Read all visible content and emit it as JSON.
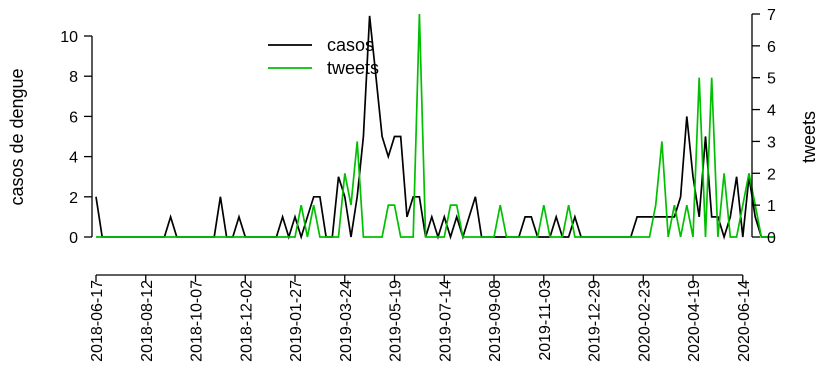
{
  "chart_data": {
    "type": "line",
    "ylabel_left": "casos de dengue",
    "ylabel_right": "tweets",
    "ylim_left": [
      0,
      11
    ],
    "ylim_right": [
      0,
      7
    ],
    "yticks_left": [
      0,
      2,
      4,
      6,
      8,
      10
    ],
    "yticks_right": [
      0,
      1,
      2,
      3,
      4,
      5,
      6,
      7
    ],
    "x_range": [
      "2018-06-17",
      "2020-06-21"
    ],
    "x_tick_labels": [
      "2018-06-17",
      "2018-08-12",
      "2018-10-07",
      "2018-12-02",
      "2019-01-27",
      "2019-03-24",
      "2019-05-19",
      "2019-07-14",
      "2019-09-08",
      "2019-11-03",
      "2019-12-29",
      "2020-02-23",
      "2020-04-19",
      "2020-06-14"
    ],
    "legend": {
      "placement": "top-center",
      "entries": [
        "casos",
        "tweets"
      ]
    },
    "series": [
      {
        "name": "casos",
        "axis": "left",
        "color": "#000000",
        "points": [
          [
            "2018-06-17",
            2
          ],
          [
            "2018-06-24",
            0
          ],
          [
            "2018-09-02",
            0
          ],
          [
            "2018-09-09",
            1
          ],
          [
            "2018-09-16",
            0
          ],
          [
            "2018-10-28",
            0
          ],
          [
            "2018-11-04",
            2
          ],
          [
            "2018-11-11",
            0
          ],
          [
            "2018-11-18",
            0
          ],
          [
            "2018-11-25",
            1
          ],
          [
            "2018-12-02",
            0
          ],
          [
            "2019-01-06",
            0
          ],
          [
            "2019-01-13",
            1
          ],
          [
            "2019-01-20",
            0
          ],
          [
            "2019-01-27",
            1
          ],
          [
            "2019-02-03",
            0
          ],
          [
            "2019-02-10",
            1
          ],
          [
            "2019-02-17",
            2
          ],
          [
            "2019-02-24",
            2
          ],
          [
            "2019-03-03",
            0
          ],
          [
            "2019-03-10",
            0
          ],
          [
            "2019-03-17",
            3
          ],
          [
            "2019-03-24",
            2
          ],
          [
            "2019-03-31",
            0
          ],
          [
            "2019-04-07",
            2
          ],
          [
            "2019-04-14",
            5
          ],
          [
            "2019-04-21",
            11
          ],
          [
            "2019-04-28",
            8
          ],
          [
            "2019-05-05",
            5
          ],
          [
            "2019-05-12",
            4
          ],
          [
            "2019-05-19",
            5
          ],
          [
            "2019-05-26",
            5
          ],
          [
            "2019-06-02",
            1
          ],
          [
            "2019-06-09",
            2
          ],
          [
            "2019-06-16",
            2
          ],
          [
            "2019-06-23",
            0
          ],
          [
            "2019-06-30",
            1
          ],
          [
            "2019-07-07",
            0
          ],
          [
            "2019-07-14",
            1
          ],
          [
            "2019-07-21",
            0
          ],
          [
            "2019-07-28",
            1
          ],
          [
            "2019-08-04",
            0
          ],
          [
            "2019-08-11",
            1
          ],
          [
            "2019-08-18",
            2
          ],
          [
            "2019-08-25",
            0
          ],
          [
            "2019-10-06",
            0
          ],
          [
            "2019-10-13",
            1
          ],
          [
            "2019-10-20",
            1
          ],
          [
            "2019-10-27",
            0
          ],
          [
            "2019-11-10",
            0
          ],
          [
            "2019-11-17",
            1
          ],
          [
            "2019-11-24",
            0
          ],
          [
            "2019-12-01",
            0
          ],
          [
            "2019-12-08",
            1
          ],
          [
            "2019-12-15",
            0
          ],
          [
            "2020-02-09",
            0
          ],
          [
            "2020-02-16",
            1
          ],
          [
            "2020-03-29",
            1
          ],
          [
            "2020-04-05",
            2
          ],
          [
            "2020-04-12",
            6
          ],
          [
            "2020-04-19",
            3
          ],
          [
            "2020-04-26",
            1
          ],
          [
            "2020-05-03",
            5
          ],
          [
            "2020-05-10",
            1
          ],
          [
            "2020-05-17",
            1
          ],
          [
            "2020-05-24",
            0
          ],
          [
            "2020-05-31",
            1
          ],
          [
            "2020-06-07",
            3
          ],
          [
            "2020-06-14",
            0
          ],
          [
            "2020-06-21",
            3
          ],
          [
            "2020-06-28",
            1
          ],
          [
            "2020-07-05",
            0
          ],
          [
            "2020-07-19",
            0
          ]
        ]
      },
      {
        "name": "tweets",
        "axis": "right",
        "color": "#00c000",
        "points": [
          [
            "2018-06-17",
            0
          ],
          [
            "2019-01-27",
            0
          ],
          [
            "2019-02-03",
            1
          ],
          [
            "2019-02-10",
            0
          ],
          [
            "2019-02-17",
            1
          ],
          [
            "2019-02-24",
            0
          ],
          [
            "2019-03-17",
            0
          ],
          [
            "2019-03-24",
            2
          ],
          [
            "2019-03-31",
            1
          ],
          [
            "2019-04-07",
            3
          ],
          [
            "2019-04-14",
            0
          ],
          [
            "2019-05-05",
            0
          ],
          [
            "2019-05-12",
            1
          ],
          [
            "2019-05-19",
            1
          ],
          [
            "2019-05-26",
            0
          ],
          [
            "2019-06-09",
            0
          ],
          [
            "2019-06-16",
            7
          ],
          [
            "2019-06-23",
            0
          ],
          [
            "2019-07-14",
            0
          ],
          [
            "2019-07-21",
            1
          ],
          [
            "2019-07-28",
            1
          ],
          [
            "2019-08-04",
            0
          ],
          [
            "2019-09-08",
            0
          ],
          [
            "2019-09-15",
            1
          ],
          [
            "2019-09-22",
            0
          ],
          [
            "2019-10-27",
            0
          ],
          [
            "2019-11-03",
            1
          ],
          [
            "2019-11-10",
            0
          ],
          [
            "2019-11-24",
            0
          ],
          [
            "2019-12-01",
            1
          ],
          [
            "2019-12-08",
            0
          ],
          [
            "2020-03-01",
            0
          ],
          [
            "2020-03-08",
            1
          ],
          [
            "2020-03-15",
            3
          ],
          [
            "2020-03-22",
            0
          ],
          [
            "2020-03-29",
            1
          ],
          [
            "2020-04-05",
            0
          ],
          [
            "2020-04-12",
            1
          ],
          [
            "2020-04-19",
            0
          ],
          [
            "2020-04-26",
            5
          ],
          [
            "2020-05-03",
            0
          ],
          [
            "2020-05-10",
            5
          ],
          [
            "2020-05-17",
            0
          ],
          [
            "2020-05-24",
            2
          ],
          [
            "2020-05-31",
            0
          ],
          [
            "2020-06-07",
            0
          ],
          [
            "2020-06-14",
            1
          ],
          [
            "2020-06-21",
            2
          ],
          [
            "2020-06-28",
            1
          ],
          [
            "2020-07-05",
            0
          ],
          [
            "2020-07-19",
            0
          ]
        ]
      }
    ]
  }
}
